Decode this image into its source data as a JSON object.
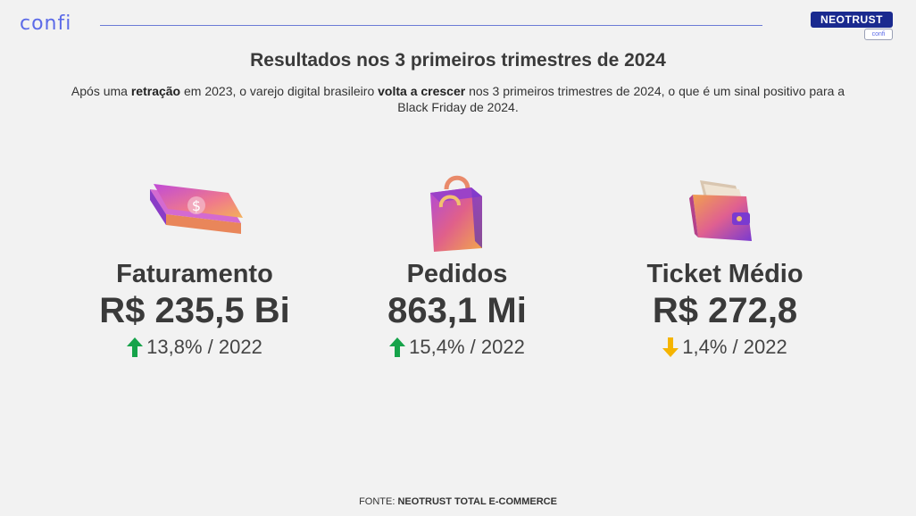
{
  "header": {
    "brand_logo": "confi",
    "partner_logo_main": "NEOTRUST",
    "partner_logo_sub": "confi"
  },
  "title": "Resultados nos 3 primeiros trimestres de 2024",
  "subtitle": {
    "part1": "Após uma ",
    "bold1": "retração",
    "part2": " em 2023, o varejo digital brasileiro ",
    "bold2": "volta a crescer",
    "part3": " nos 3 primeiros trimestres de 2024, o que é um sinal positivo para a Black Friday de 2024."
  },
  "metrics": [
    {
      "label": "Faturamento",
      "value": "R$ 235,5 Bi",
      "change": "13,8% / 2022",
      "direction": "up",
      "icon": "money-bills-icon"
    },
    {
      "label": "Pedidos",
      "value": "863,1 Mi",
      "change": "15,4% / 2022",
      "direction": "up",
      "icon": "shopping-bag-icon"
    },
    {
      "label": "Ticket Médio",
      "value": "R$ 272,8",
      "change": "1,4% / 2022",
      "direction": "down",
      "icon": "wallet-icon"
    }
  ],
  "colors": {
    "up_arrow": "#16a34a",
    "down_arrow": "#f5b400",
    "brand": "#5b6ae8",
    "neotrust": "#1a2a8f"
  },
  "footer": {
    "prefix": "FONTE: ",
    "source": "NEOTRUST TOTAL E-COMMERCE"
  }
}
